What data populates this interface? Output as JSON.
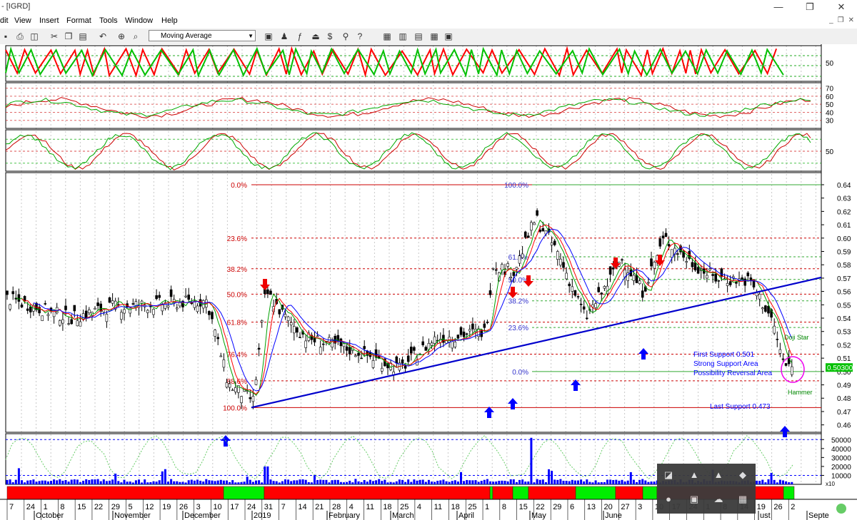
{
  "window": {
    "title": "- [IGRD]",
    "minimize": "—",
    "restore": "❐",
    "close": "✕"
  },
  "menu": [
    "dit",
    "View",
    "Insert",
    "Format",
    "Tools",
    "Window",
    "Help"
  ],
  "mdi_buttons": [
    "_",
    "❐",
    "✕"
  ],
  "toolbar": {
    "indicator_select": "Moving Average"
  },
  "colors": {
    "up": "#ff0000",
    "down": "#00c000",
    "price": "#000000",
    "ma1": "#0000ff",
    "ma2": "#ff0000",
    "ma3": "#00a000",
    "fib": "#cc0000",
    "trend": "#0000cc",
    "annot": "#0000ff",
    "volume": "#0000ff"
  },
  "chart_data": {
    "type": "line",
    "title": "",
    "price_axis": {
      "ticks": [
        0.64,
        0.63,
        0.62,
        0.61,
        0.6,
        0.59,
        0.58,
        0.57,
        0.56,
        0.55,
        0.54,
        0.53,
        0.52,
        0.51,
        0.5,
        0.49,
        0.48,
        0.47,
        0.46
      ],
      "ylim": [
        0.455,
        0.648
      ]
    },
    "last_price_label": "0.50300",
    "fibonacci_retracement": [
      {
        "label": "0.0%",
        "price": 0.64
      },
      {
        "label": "23.6%",
        "price": 0.6
      },
      {
        "label": "38.2%",
        "price": 0.577
      },
      {
        "label": "50.0%",
        "price": 0.558
      },
      {
        "label": "61.8%",
        "price": 0.537
      },
      {
        "label": "76.4%",
        "price": 0.513
      },
      {
        "label": "88.6%",
        "price": 0.493
      },
      {
        "label": "100.0%",
        "price": 0.473
      }
    ],
    "fibonacci_small": [
      {
        "label": "100.0%",
        "price": 0.64
      },
      {
        "label": "61.8%",
        "price": 0.586
      },
      {
        "label": "50.0%",
        "price": 0.569
      },
      {
        "label": "38.2%",
        "price": 0.553
      },
      {
        "label": "23.6%",
        "price": 0.533
      },
      {
        "label": "0.0%",
        "price": 0.5
      }
    ],
    "annotations": {
      "first_support": "First Support 0.501",
      "strong_support": "Strong Support Area",
      "reversal": "Possibility Reversal Area",
      "last_support": "Last Support 0.473",
      "doji_star": "Doji Star",
      "hammer": "Hammer"
    },
    "panels": {
      "top_osc": {
        "ticks": [
          "50"
        ]
      },
      "rsi": {
        "ticks": [
          "70",
          "60",
          "50",
          "40",
          "30"
        ]
      },
      "stoch": {
        "ticks": [
          "50"
        ]
      },
      "volume": {
        "ticks": [
          "50000",
          "40000",
          "30000",
          "20000",
          "10000"
        ],
        "multiplier": "x10"
      }
    },
    "x_axis": {
      "day_ticks": [
        "7",
        "24",
        "1",
        "8",
        "15",
        "22",
        "29",
        "5",
        "12",
        "19",
        "26",
        "3",
        "10",
        "17",
        "24",
        "31",
        "7",
        "14",
        "21",
        "28",
        "4",
        "11",
        "18",
        "25",
        "4",
        "11",
        "18",
        "25",
        "1",
        "8",
        "15",
        "22",
        "29",
        "6",
        "13",
        "20",
        "27",
        "3",
        "10",
        "17",
        "24",
        "1",
        "8",
        "14",
        "19",
        "26",
        "2"
      ],
      "month_labels": [
        "October",
        "November",
        "December",
        "2019",
        "February",
        "March",
        "April",
        "May",
        "June",
        "ust",
        "Septe"
      ]
    }
  }
}
